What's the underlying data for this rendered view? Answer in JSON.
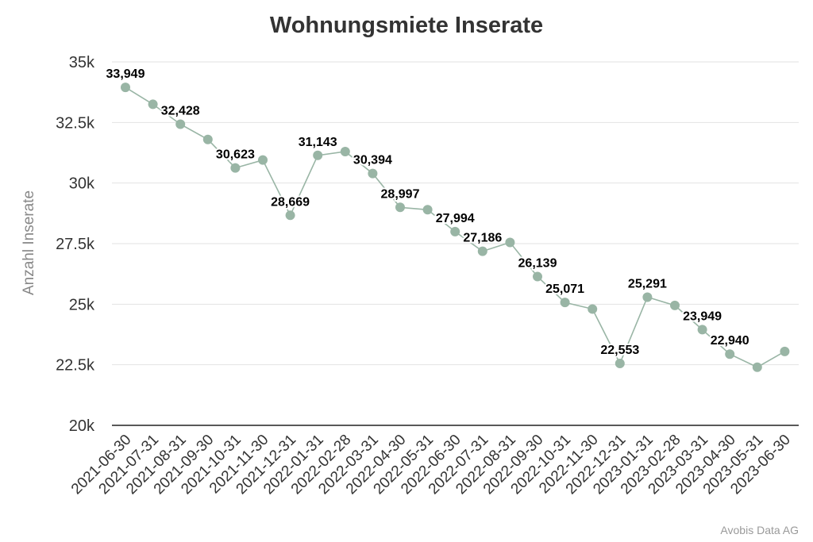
{
  "chart_data": {
    "type": "line",
    "title": "Wohnungsmiete Inserate",
    "xlabel": "",
    "ylabel": "Anzahl Inserate",
    "ylim": [
      20000,
      35000
    ],
    "yticks": [
      {
        "value": 20000,
        "label": "20k"
      },
      {
        "value": 22500,
        "label": "22.5k"
      },
      {
        "value": 25000,
        "label": "25k"
      },
      {
        "value": 27500,
        "label": "27.5k"
      },
      {
        "value": 30000,
        "label": "30k"
      },
      {
        "value": 32500,
        "label": "32.5k"
      },
      {
        "value": 35000,
        "label": "35k"
      }
    ],
    "grid": true,
    "legend": "none",
    "color": "#99b5a5",
    "categories": [
      "2021-06-30",
      "2021-07-31",
      "2021-08-31",
      "2021-09-30",
      "2021-10-31",
      "2021-11-30",
      "2021-12-31",
      "2022-01-31",
      "2022-02-28",
      "2022-03-31",
      "2022-04-30",
      "2022-05-31",
      "2022-06-30",
      "2022-07-31",
      "2022-08-31",
      "2022-09-30",
      "2022-10-31",
      "2022-11-30",
      "2022-12-31",
      "2023-01-31",
      "2023-02-28",
      "2023-03-31",
      "2023-04-30",
      "2023-05-31",
      "2023-06-30"
    ],
    "values": [
      33949,
      33250,
      32428,
      31800,
      30623,
      30950,
      28669,
      31143,
      31300,
      30394,
      28997,
      28900,
      27994,
      27186,
      27550,
      26139,
      25071,
      24800,
      22553,
      25291,
      24950,
      23949,
      22940,
      22400,
      23050
    ],
    "data_labels": [
      "33,949",
      null,
      "32,428",
      null,
      "30,623",
      null,
      "28,669",
      "31,143",
      null,
      "30,394",
      "28,997",
      null,
      "27,994",
      "27,186",
      null,
      "26,139",
      "25,071",
      null,
      "22,553",
      "25,291",
      null,
      "23,949",
      "22,940",
      null,
      null
    ]
  },
  "credit": "Avobis Data AG"
}
